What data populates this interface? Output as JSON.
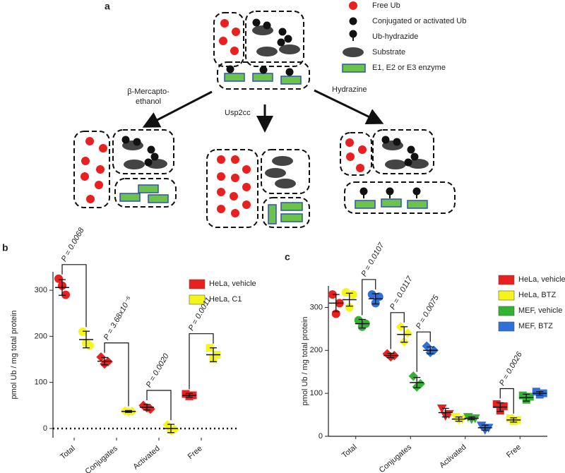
{
  "diagram": {
    "panel_label": "a",
    "legend": [
      "Free Ub",
      "Conjugated or activated Ub",
      "Ub-hydrazide",
      "Substrate",
      "E1, E2 or E3 enzyme"
    ],
    "arrows": [
      {
        "label": [
          "β-Mercapto-",
          "ethanol"
        ]
      },
      {
        "label": [
          "Usp2cc"
        ]
      },
      {
        "label": [
          "Hydrazine"
        ]
      }
    ]
  },
  "chart_data": [
    {
      "type": "scatter",
      "panel_label": "b",
      "y_label": "pmol Ub / mg total protein",
      "categories": [
        "Total",
        "Conjugates",
        "Activated",
        "Free"
      ],
      "markers": [
        "circle",
        "diamond",
        "diamond",
        "square"
      ],
      "ylim": [
        -20,
        340
      ],
      "yticks": [
        0,
        100,
        200,
        300
      ],
      "zero_line": true,
      "series": [
        {
          "name": "HeLa, vehicle",
          "color": "#e8201f",
          "values": [
            306,
            146,
            46,
            72
          ],
          "errors": [
            17,
            8,
            6,
            4
          ],
          "points": [
            [
              325,
              310,
              290
            ],
            [
              155,
              140,
              145
            ],
            [
              50,
              45,
              42
            ],
            [
              75,
              70,
              72
            ]
          ]
        },
        {
          "name": "HeLa, C1",
          "color": "#f5f51c",
          "values": [
            193,
            37,
            0,
            160
          ],
          "errors": [
            18,
            2,
            9,
            15
          ],
          "points": [
            [
              210,
              185,
              180
            ],
            [
              38,
              36,
              37
            ],
            [
              8,
              -5,
              -2
            ],
            [
              175,
              150,
              160
            ]
          ]
        }
      ],
      "annotations": [
        "P = 0.0068",
        "P = 3.68x10⁻⁵",
        "P = 0.0020",
        "P = 0.0011"
      ]
    },
    {
      "type": "scatter",
      "panel_label": "c",
      "y_label": "pmol Ub / mg total protein",
      "categories": [
        "Total",
        "Conjugates",
        "Activated",
        "Free"
      ],
      "markers": [
        "circle",
        "diamond",
        "triangle-down",
        "square"
      ],
      "ylim": [
        0,
        350
      ],
      "yticks": [
        0,
        100,
        200,
        300
      ],
      "series": [
        {
          "name": "HeLa, vehicle",
          "color": "#e8201f",
          "values": [
            310,
            188,
            55,
            68
          ],
          "errors": [
            20,
            5,
            10,
            10
          ],
          "points": [
            [
              330,
              285,
              310
            ],
            [
              192,
              185,
              188
            ],
            [
              65,
              48,
              52
            ],
            [
              75,
              60,
              70
            ]
          ]
        },
        {
          "name": "HeLa, BTZ",
          "color": "#f5f51c",
          "values": [
            318,
            237,
            40,
            38
          ],
          "errors": [
            15,
            18,
            5,
            5
          ],
          "points": [
            [
              335,
              300,
              330
            ],
            [
              255,
              220,
              240
            ],
            [
              45,
              38,
              40
            ],
            [
              42,
              35,
              38
            ]
          ]
        },
        {
          "name": "MEF, vehicle",
          "color": "#33b233",
          "values": [
            262,
            125,
            42,
            90
          ],
          "errors": [
            10,
            12,
            3,
            8
          ],
          "points": [
            [
              270,
              255,
              262
            ],
            [
              140,
              115,
              122
            ],
            [
              45,
              40,
              42
            ],
            [
              95,
              85,
              92
            ]
          ]
        },
        {
          "name": "MEF, BTZ",
          "color": "#2f6fd6",
          "values": [
            320,
            200,
            20,
            100
          ],
          "errors": [
            12,
            8,
            6,
            4
          ],
          "points": [
            [
              330,
              310,
              325
            ],
            [
              210,
              195,
              200
            ],
            [
              25,
              15,
              20
            ],
            [
              104,
              97,
              100
            ]
          ]
        }
      ],
      "annotations": [
        "P = 0.0107",
        "P = 0.0117",
        "P = 0.0075",
        "P = 0.0026"
      ]
    }
  ]
}
